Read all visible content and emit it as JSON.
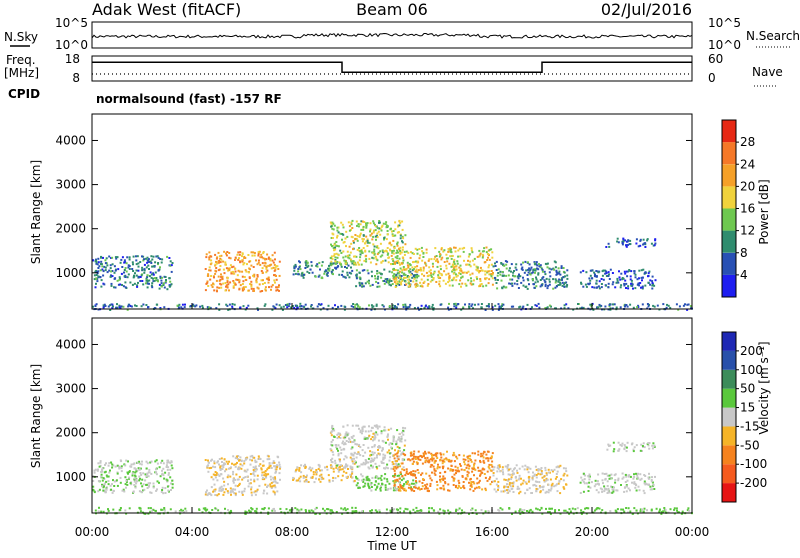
{
  "header": {
    "station": "Adak West (fitACF)",
    "beam": "Beam 06",
    "date": "02/Jul/2016"
  },
  "noise_panel": {
    "left_label": "N.Sky",
    "right_label": "N.Search",
    "left_ticks": [
      "10^5",
      "10^0"
    ],
    "right_ticks": [
      "10^5",
      "10^0"
    ]
  },
  "freq_panel": {
    "left_label_1": "Freq.",
    "left_label_2": "[MHz]",
    "right_label": "Nave",
    "left_ticks": [
      "18",
      "8"
    ],
    "right_ticks": [
      "60",
      "0"
    ],
    "cpid_label": "CPID",
    "cpid_text": "normalsound (fast) -157 RF"
  },
  "power_panel": {
    "ylabel": "Slant Range [km]",
    "yticks": [
      "1000",
      "2000",
      "3000",
      "4000"
    ],
    "colorbar_label": "Power [dB]",
    "colorbar_ticks": [
      "4",
      "8",
      "12",
      "16",
      "20",
      "24",
      "28"
    ],
    "colors": [
      "#1e1ef0",
      "#2850b4",
      "#2f8c6e",
      "#6ec850",
      "#f0d23c",
      "#f5a028",
      "#f57828",
      "#e62814"
    ]
  },
  "velocity_panel": {
    "ylabel": "Slant Range [km]",
    "yticks": [
      "1000",
      "2000",
      "3000",
      "4000"
    ],
    "colorbar_label": "Velocity [m s⁻¹]",
    "colorbar_ticks": [
      "-200",
      "-100",
      "-50",
      "-15",
      "15",
      "50",
      "100",
      "200"
    ],
    "colors": [
      "#e61414",
      "#f55a1e",
      "#f5821e",
      "#f5b428",
      "#c8c8c8",
      "#5ac83c",
      "#3c8c5a",
      "#2850aa",
      "#1e28b4"
    ]
  },
  "xaxis": {
    "ticks": [
      "00:00",
      "04:00",
      "08:00",
      "12:00",
      "16:00",
      "20:00",
      "00:00"
    ],
    "label": "Time UT"
  },
  "chart_data": {
    "type": "heatmap",
    "x_range_hours": [
      0,
      24
    ],
    "y_range_km": [
      180,
      4600
    ],
    "freq_mhz_ylim": [
      8,
      18
    ],
    "freq_segments": [
      {
        "start": 0,
        "end": 10,
        "freq_mhz": 15.5
      },
      {
        "start": 10,
        "end": 18,
        "freq_mhz": 11.5
      },
      {
        "start": 18,
        "end": 24,
        "freq_mhz": 15.5
      }
    ],
    "echo_regions": [
      {
        "t0": 0.0,
        "t1": 3.2,
        "r0": 650,
        "r1": 1400,
        "power_db": 8,
        "velocity": 10
      },
      {
        "t0": 4.5,
        "t1": 7.5,
        "r0": 600,
        "r1": 1500,
        "power_db": 22,
        "velocity": -10
      },
      {
        "t0": 8.0,
        "t1": 10.5,
        "r0": 900,
        "r1": 1300,
        "power_db": 10,
        "velocity": -20
      },
      {
        "t0": 9.5,
        "t1": 12.5,
        "r0": 1200,
        "r1": 2200,
        "power_db": 16,
        "velocity": 0
      },
      {
        "t0": 10.5,
        "t1": 13.0,
        "r0": 700,
        "r1": 1100,
        "power_db": 10,
        "velocity": 25
      },
      {
        "t0": 12.0,
        "t1": 16.0,
        "r0": 700,
        "r1": 1600,
        "power_db": 18,
        "velocity": -60
      },
      {
        "t0": 16.0,
        "t1": 19.0,
        "r0": 650,
        "r1": 1300,
        "power_db": 9,
        "velocity": -10
      },
      {
        "t0": 19.5,
        "t1": 22.5,
        "r0": 650,
        "r1": 1100,
        "power_db": 7,
        "velocity": 5
      },
      {
        "t0": 20.5,
        "t1": 22.5,
        "r0": 1600,
        "r1": 1800,
        "power_db": 6,
        "velocity": 5
      },
      {
        "t0": 0.0,
        "t1": 24.0,
        "r0": 180,
        "r1": 320,
        "power_db": 8,
        "velocity": 30
      }
    ]
  }
}
